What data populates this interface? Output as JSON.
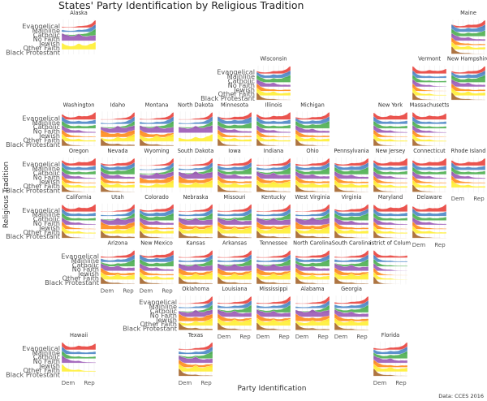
{
  "chart_data": {
    "type": "ridgeline",
    "title": "States' Party Identification by Religious Tradition",
    "xlabel": "Party Identification",
    "ylabel": "Religious Tradition",
    "caption": "Data: CCES 2016",
    "x_ticks": [
      "Dem",
      "Rep"
    ],
    "traditions": [
      "Evangelical",
      "Mainline",
      "Catholic",
      "No Faith",
      "Jewish",
      "Other Faith",
      "Black Protestant"
    ],
    "colors": {
      "Evangelical": "#e8413c",
      "Mainline": "#4a86c5",
      "Catholic": "#4caf50",
      "No Faith": "#9b59b6",
      "Jewish": "#ff8c1a",
      "Other Faith": "#ffee33",
      "Black Protestant": "#a5662e"
    },
    "base_profiles": {
      "Evangelical": [
        0.12,
        0.06,
        0.06,
        0.12,
        0.12,
        0.16,
        0.36
      ],
      "Mainline": [
        0.2,
        0.1,
        0.08,
        0.12,
        0.1,
        0.15,
        0.25
      ],
      "Catholic": [
        0.22,
        0.12,
        0.08,
        0.12,
        0.1,
        0.14,
        0.22
      ],
      "No Faith": [
        0.3,
        0.18,
        0.12,
        0.16,
        0.08,
        0.08,
        0.08
      ],
      "Jewish": [
        0.4,
        0.18,
        0.1,
        0.1,
        0.06,
        0.08,
        0.08
      ],
      "Other Faith": [
        0.3,
        0.14,
        0.1,
        0.16,
        0.08,
        0.1,
        0.12
      ],
      "Black Protestant": [
        0.6,
        0.16,
        0.08,
        0.08,
        0.03,
        0.03,
        0.02
      ]
    },
    "states": [
      {
        "name": "Alaska",
        "lean": 0.4,
        "missing": [
          "Jewish",
          "Black Protestant"
        ]
      },
      {
        "name": "Maine",
        "lean": -0.1
      },
      {
        "name": "Wisconsin",
        "lean": 0.0
      },
      {
        "name": "Vermont",
        "lean": -0.6
      },
      {
        "name": "New Hampshire",
        "lean": 0.0
      },
      {
        "name": "Washington",
        "lean": -0.3
      },
      {
        "name": "Idaho",
        "lean": 0.6
      },
      {
        "name": "Montana",
        "lean": 0.4
      },
      {
        "name": "North Dakota",
        "lean": 0.6,
        "missing": [
          "Jewish",
          "Black Protestant"
        ]
      },
      {
        "name": "Minnesota",
        "lean": -0.1
      },
      {
        "name": "Illinois",
        "lean": -0.3
      },
      {
        "name": "Michigan",
        "lean": 0.0
      },
      {
        "name": "New York",
        "lean": -0.4
      },
      {
        "name": "Massachusetts",
        "lean": -0.5
      },
      {
        "name": "Oregon",
        "lean": -0.3
      },
      {
        "name": "Nevada",
        "lean": 0.0
      },
      {
        "name": "Wyoming",
        "lean": 0.7,
        "missing": [
          "Black Protestant"
        ]
      },
      {
        "name": "South Dakota",
        "lean": 0.5,
        "missing": [
          "Black Protestant"
        ]
      },
      {
        "name": "Iowa",
        "lean": 0.1
      },
      {
        "name": "Indiana",
        "lean": 0.3
      },
      {
        "name": "Ohio",
        "lean": 0.1
      },
      {
        "name": "Pennsylvania",
        "lean": 0.0
      },
      {
        "name": "New Jersey",
        "lean": -0.3
      },
      {
        "name": "Connecticut",
        "lean": -0.3
      },
      {
        "name": "Rhode Island",
        "lean": -0.3,
        "missing": [
          "Black Protestant"
        ]
      },
      {
        "name": "California",
        "lean": -0.4
      },
      {
        "name": "Utah",
        "lean": 0.6
      },
      {
        "name": "Colorado",
        "lean": 0.0
      },
      {
        "name": "Nebraska",
        "lean": 0.4
      },
      {
        "name": "Missouri",
        "lean": 0.3
      },
      {
        "name": "Kentucky",
        "lean": 0.4
      },
      {
        "name": "West Virginia",
        "lean": 0.5
      },
      {
        "name": "Virginia",
        "lean": 0.0
      },
      {
        "name": "Maryland",
        "lean": -0.4
      },
      {
        "name": "Delaware",
        "lean": -0.3
      },
      {
        "name": "Arizona",
        "lean": 0.2
      },
      {
        "name": "New Mexico",
        "lean": -0.1
      },
      {
        "name": "Kansas",
        "lean": 0.4
      },
      {
        "name": "Arkansas",
        "lean": 0.4
      },
      {
        "name": "Tennessee",
        "lean": 0.4
      },
      {
        "name": "North Carolina",
        "lean": 0.1
      },
      {
        "name": "South Carolina",
        "lean": 0.3
      },
      {
        "name": "District of Columbia",
        "lean": -0.9
      },
      {
        "name": "Oklahoma",
        "lean": 0.6
      },
      {
        "name": "Louisiana",
        "lean": 0.3
      },
      {
        "name": "Mississippi",
        "lean": 0.3
      },
      {
        "name": "Alabama",
        "lean": 0.5
      },
      {
        "name": "Georgia",
        "lean": 0.2
      },
      {
        "name": "Hawaii",
        "lean": -0.5,
        "missing": [
          "Jewish",
          "Black Protestant"
        ]
      },
      {
        "name": "Texas",
        "lean": 0.3
      },
      {
        "name": "Florida",
        "lean": 0.1
      }
    ]
  }
}
